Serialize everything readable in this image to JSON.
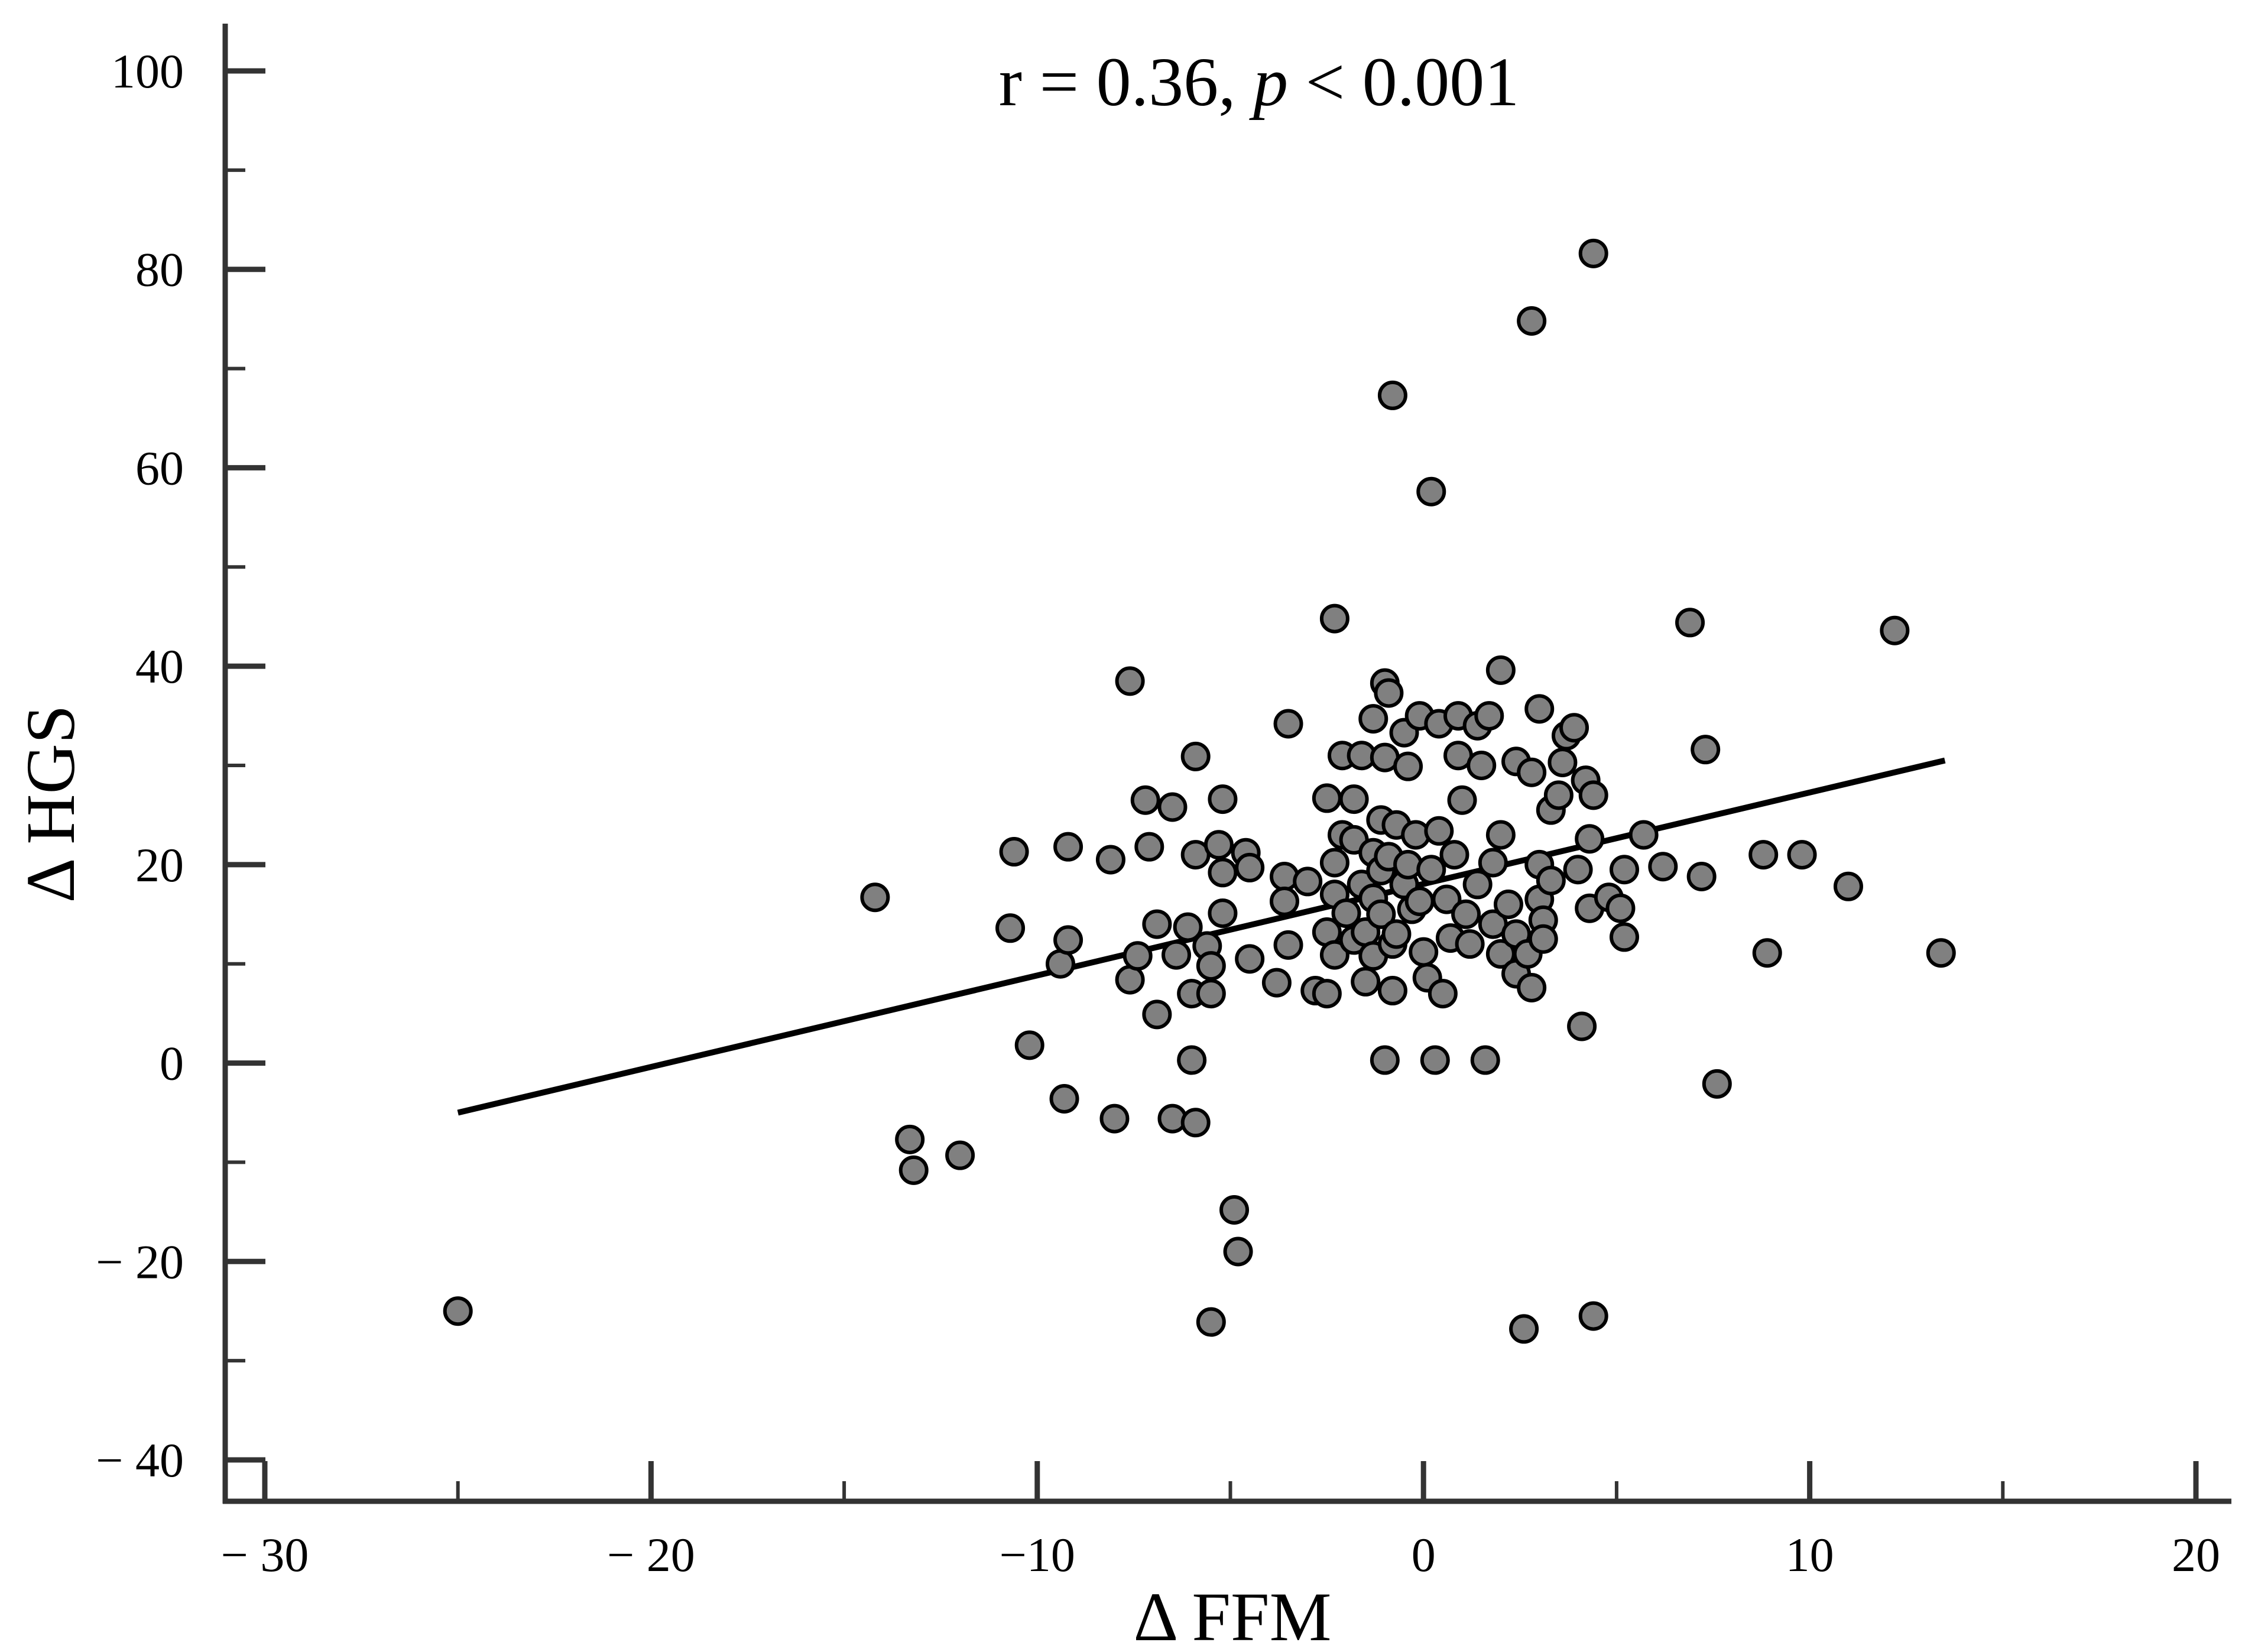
{
  "chart_data": {
    "type": "scatter",
    "title": "",
    "annotation": {
      "prefix": "r = 0.36, ",
      "italic": "p",
      "suffix": " < 0.001"
    },
    "xlabel": "Δ FFM",
    "ylabel": "Δ HGS",
    "xlim": [
      -31,
      21
    ],
    "ylim": [
      -44,
      104
    ],
    "x_ticks": [
      -30,
      -20,
      -10,
      0,
      10,
      20
    ],
    "x_tick_labels": [
      "− 30",
      "− 20",
      "−10",
      "0",
      "10",
      "20"
    ],
    "x_minor_ticks": [
      -25,
      -15,
      -5,
      5,
      15
    ],
    "y_ticks": [
      -40,
      -20,
      0,
      20,
      40,
      60,
      80,
      100
    ],
    "y_tick_labels": [
      "− 40",
      "− 20",
      "0",
      "20",
      "40",
      "60",
      "80",
      "100"
    ],
    "y_minor_ticks": [
      -30,
      -10,
      10,
      30,
      50,
      70,
      90
    ],
    "grid": false,
    "legend": "none",
    "marker_fill": "#808080",
    "marker_edge": "#000000",
    "line_color": "#000000",
    "trendline": {
      "x": [
        -25,
        13.5
      ],
      "y": [
        -5,
        30.5
      ]
    },
    "points": [
      {
        "x": -25.0,
        "y": -25.0
      },
      {
        "x": -14.2,
        "y": 16.7
      },
      {
        "x": -13.3,
        "y": -7.7
      },
      {
        "x": -13.2,
        "y": -10.8
      },
      {
        "x": -12.0,
        "y": -9.3
      },
      {
        "x": -10.7,
        "y": 13.6
      },
      {
        "x": -10.6,
        "y": 21.3
      },
      {
        "x": -10.2,
        "y": 1.8
      },
      {
        "x": -9.4,
        "y": 10.0
      },
      {
        "x": -9.3,
        "y": -3.6
      },
      {
        "x": -9.2,
        "y": 21.8
      },
      {
        "x": -9.2,
        "y": 12.4
      },
      {
        "x": -8.1,
        "y": 20.5
      },
      {
        "x": -8.0,
        "y": -5.6
      },
      {
        "x": -7.6,
        "y": 38.5
      },
      {
        "x": -7.6,
        "y": 8.4
      },
      {
        "x": -7.4,
        "y": 10.8
      },
      {
        "x": -7.2,
        "y": 26.5
      },
      {
        "x": -7.1,
        "y": 21.8
      },
      {
        "x": -6.9,
        "y": 14.0
      },
      {
        "x": -6.9,
        "y": 4.9
      },
      {
        "x": -6.5,
        "y": 25.8
      },
      {
        "x": -6.5,
        "y": -5.6
      },
      {
        "x": -6.4,
        "y": 10.9
      },
      {
        "x": -6.1,
        "y": 13.7
      },
      {
        "x": -6.0,
        "y": 7.0
      },
      {
        "x": -6.0,
        "y": 0.3
      },
      {
        "x": -5.9,
        "y": 30.9
      },
      {
        "x": -5.9,
        "y": 21.0
      },
      {
        "x": -5.9,
        "y": -6.0
      },
      {
        "x": -5.6,
        "y": 11.8
      },
      {
        "x": -5.5,
        "y": 9.8
      },
      {
        "x": -5.5,
        "y": 7.0
      },
      {
        "x": -5.5,
        "y": -26.1
      },
      {
        "x": -5.3,
        "y": 22.0
      },
      {
        "x": -5.2,
        "y": 26.6
      },
      {
        "x": -5.2,
        "y": 19.2
      },
      {
        "x": -5.2,
        "y": 15.1
      },
      {
        "x": -4.9,
        "y": -14.8
      },
      {
        "x": -4.8,
        "y": -19.0
      },
      {
        "x": -4.6,
        "y": 21.2
      },
      {
        "x": -4.5,
        "y": 19.7
      },
      {
        "x": -4.5,
        "y": 10.5
      },
      {
        "x": -3.8,
        "y": 8.1
      },
      {
        "x": -3.6,
        "y": 18.8
      },
      {
        "x": -3.6,
        "y": 16.3
      },
      {
        "x": -3.5,
        "y": 34.2
      },
      {
        "x": -3.5,
        "y": 11.9
      },
      {
        "x": -3.0,
        "y": 18.3
      },
      {
        "x": -2.8,
        "y": 7.3
      },
      {
        "x": -2.5,
        "y": 26.7
      },
      {
        "x": -2.5,
        "y": 13.2
      },
      {
        "x": -2.5,
        "y": 7.0
      },
      {
        "x": -2.3,
        "y": 44.8
      },
      {
        "x": -2.3,
        "y": 20.2
      },
      {
        "x": -2.3,
        "y": 17.0
      },
      {
        "x": -2.3,
        "y": 10.9
      },
      {
        "x": -2.1,
        "y": 31.0
      },
      {
        "x": -2.1,
        "y": 23.0
      },
      {
        "x": -2.0,
        "y": 15.1
      },
      {
        "x": -1.8,
        "y": 26.6
      },
      {
        "x": -1.8,
        "y": 22.5
      },
      {
        "x": -1.8,
        "y": 12.4
      },
      {
        "x": -1.6,
        "y": 31.0
      },
      {
        "x": -1.6,
        "y": 18.0
      },
      {
        "x": -1.5,
        "y": 13.2
      },
      {
        "x": -1.5,
        "y": 8.2
      },
      {
        "x": -1.3,
        "y": 34.7
      },
      {
        "x": -1.3,
        "y": 21.2
      },
      {
        "x": -1.3,
        "y": 16.6
      },
      {
        "x": -1.3,
        "y": 10.8
      },
      {
        "x": -1.1,
        "y": 24.5
      },
      {
        "x": -1.1,
        "y": 19.4
      },
      {
        "x": -1.1,
        "y": 15.0
      },
      {
        "x": -1.0,
        "y": 38.3
      },
      {
        "x": -1.0,
        "y": 30.8
      },
      {
        "x": -1.0,
        "y": 0.3
      },
      {
        "x": -0.9,
        "y": 37.3
      },
      {
        "x": -0.9,
        "y": 20.8
      },
      {
        "x": -0.8,
        "y": 67.3
      },
      {
        "x": -0.8,
        "y": 12.0
      },
      {
        "x": -0.8,
        "y": 7.3
      },
      {
        "x": -0.7,
        "y": 24.0
      },
      {
        "x": -0.7,
        "y": 13.0
      },
      {
        "x": -0.5,
        "y": 33.3
      },
      {
        "x": -0.5,
        "y": 18.0
      },
      {
        "x": -0.4,
        "y": 29.9
      },
      {
        "x": -0.4,
        "y": 20.0
      },
      {
        "x": -0.3,
        "y": 15.5
      },
      {
        "x": -0.2,
        "y": 23.0
      },
      {
        "x": -0.1,
        "y": 35.0
      },
      {
        "x": -0.1,
        "y": 16.3
      },
      {
        "x": 0.0,
        "y": 11.2
      },
      {
        "x": 0.1,
        "y": 8.6
      },
      {
        "x": 0.2,
        "y": 57.6
      },
      {
        "x": 0.2,
        "y": 19.5
      },
      {
        "x": 0.3,
        "y": 0.3
      },
      {
        "x": 0.4,
        "y": 34.2
      },
      {
        "x": 0.4,
        "y": 23.4
      },
      {
        "x": 0.5,
        "y": 7.0
      },
      {
        "x": 0.6,
        "y": 16.5
      },
      {
        "x": 0.7,
        "y": 12.6
      },
      {
        "x": 0.8,
        "y": 21.0
      },
      {
        "x": 0.9,
        "y": 35.0
      },
      {
        "x": 0.9,
        "y": 31.0
      },
      {
        "x": 1.0,
        "y": 26.5
      },
      {
        "x": 1.1,
        "y": 15.0
      },
      {
        "x": 1.2,
        "y": 12.0
      },
      {
        "x": 1.4,
        "y": 34.0
      },
      {
        "x": 1.4,
        "y": 18.0
      },
      {
        "x": 1.5,
        "y": 30.0
      },
      {
        "x": 1.6,
        "y": 0.3
      },
      {
        "x": 1.7,
        "y": 35.0
      },
      {
        "x": 1.8,
        "y": 20.2
      },
      {
        "x": 1.8,
        "y": 14.0
      },
      {
        "x": 2.0,
        "y": 39.6
      },
      {
        "x": 2.0,
        "y": 23.0
      },
      {
        "x": 2.0,
        "y": 11.0
      },
      {
        "x": 2.2,
        "y": 16.0
      },
      {
        "x": 2.4,
        "y": 30.4
      },
      {
        "x": 2.4,
        "y": 13.0
      },
      {
        "x": 2.4,
        "y": 9.0
      },
      {
        "x": 2.6,
        "y": -26.8
      },
      {
        "x": 2.7,
        "y": 11.0
      },
      {
        "x": 2.8,
        "y": 74.8
      },
      {
        "x": 2.8,
        "y": 29.3
      },
      {
        "x": 2.8,
        "y": 7.6
      },
      {
        "x": 3.0,
        "y": 35.7
      },
      {
        "x": 3.0,
        "y": 20.0
      },
      {
        "x": 3.0,
        "y": 16.5
      },
      {
        "x": 3.1,
        "y": 14.4
      },
      {
        "x": 3.1,
        "y": 12.5
      },
      {
        "x": 3.3,
        "y": 25.5
      },
      {
        "x": 3.3,
        "y": 18.4
      },
      {
        "x": 3.5,
        "y": 27.0
      },
      {
        "x": 3.6,
        "y": 30.3
      },
      {
        "x": 3.7,
        "y": 33.0
      },
      {
        "x": 3.9,
        "y": 33.8
      },
      {
        "x": 4.0,
        "y": 19.5
      },
      {
        "x": 4.1,
        "y": 3.7
      },
      {
        "x": 4.2,
        "y": 28.5
      },
      {
        "x": 4.3,
        "y": 22.6
      },
      {
        "x": 4.3,
        "y": 15.6
      },
      {
        "x": 4.4,
        "y": 81.6
      },
      {
        "x": 4.4,
        "y": 27.0
      },
      {
        "x": 4.4,
        "y": -25.5
      },
      {
        "x": 4.8,
        "y": 16.7
      },
      {
        "x": 5.1,
        "y": 15.6
      },
      {
        "x": 5.2,
        "y": 19.5
      },
      {
        "x": 5.2,
        "y": 12.7
      },
      {
        "x": 5.7,
        "y": 23.0
      },
      {
        "x": 6.2,
        "y": 19.8
      },
      {
        "x": 6.9,
        "y": 44.4
      },
      {
        "x": 7.2,
        "y": 18.8
      },
      {
        "x": 7.3,
        "y": 31.6
      },
      {
        "x": 7.6,
        "y": -2.1
      },
      {
        "x": 8.8,
        "y": 21.0
      },
      {
        "x": 8.9,
        "y": 11.1
      },
      {
        "x": 9.8,
        "y": 21.0
      },
      {
        "x": 11.0,
        "y": 17.8
      },
      {
        "x": 12.2,
        "y": 43.6
      },
      {
        "x": 13.4,
        "y": 11.1
      }
    ]
  }
}
